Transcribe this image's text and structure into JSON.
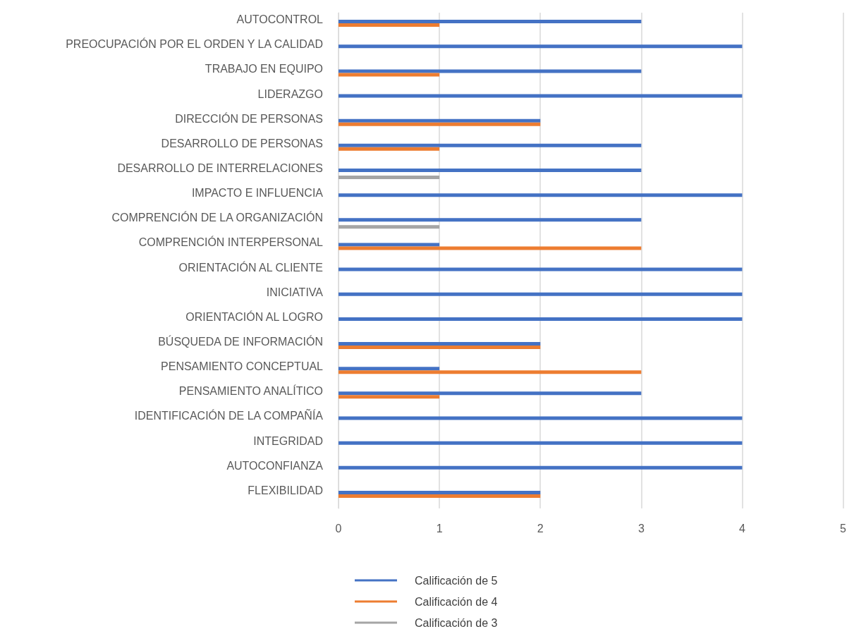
{
  "chart_data": {
    "type": "bar",
    "orientation": "horizontal",
    "categories": [
      "AUTOCONTROL",
      "PREOCUPACIÓN POR EL ORDEN Y LA CALIDAD",
      "TRABAJO EN EQUIPO",
      "LIDERAZGO",
      "DIRECCIÓN DE PERSONAS",
      "DESARROLLO DE PERSONAS",
      "DESARROLLO DE INTERRELACIONES",
      "IMPACTO E INFLUENCIA",
      "COMPRENCIÓN DE LA ORGANIZACIÓN",
      "COMPRENCIÓN INTERPERSONAL",
      "ORIENTACIÓN AL CLIENTE",
      "INICIATIVA",
      "ORIENTACIÓN AL LOGRO",
      "BÚSQUEDA DE INFORMACIÓN",
      "PENSAMIENTO CONCEPTUAL",
      "PENSAMIENTO ANALÍTICO",
      "IDENTIFICACIÓN DE LA COMPAÑÍA",
      "INTEGRIDAD",
      "AUTOCONFIANZA",
      "FLEXIBILIDAD"
    ],
    "series": [
      {
        "name": "Calificación de 5",
        "color": "#4472c4",
        "values": [
          3,
          4,
          3,
          4,
          2,
          3,
          3,
          4,
          3,
          1,
          4,
          4,
          4,
          2,
          1,
          3,
          4,
          4,
          4,
          2
        ]
      },
      {
        "name": "Calificación de 4",
        "color": "#ed7d31",
        "values": [
          1,
          0,
          1,
          0,
          2,
          1,
          0,
          0,
          0,
          3,
          0,
          0,
          0,
          2,
          3,
          1,
          0,
          0,
          0,
          2
        ]
      },
      {
        "name": "Calificación de 3",
        "color": "#a5a5a5",
        "values": [
          0,
          0,
          0,
          0,
          0,
          0,
          1,
          0,
          1,
          0,
          0,
          0,
          0,
          0,
          0,
          0,
          0,
          0,
          0,
          0
        ]
      }
    ],
    "xlim": [
      0,
      5
    ],
    "xticks": [
      0,
      1,
      2,
      3,
      4,
      5
    ],
    "grid": "x",
    "legend": "bottom"
  }
}
